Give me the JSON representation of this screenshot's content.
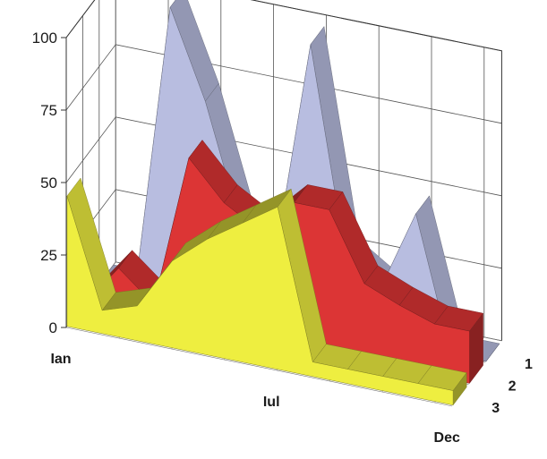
{
  "chart_data": {
    "type": "area",
    "subtype": "3d-area",
    "title": "",
    "xlabel": "",
    "ylabel": "",
    "ylim": [
      0,
      100
    ],
    "yticks": [
      0,
      25,
      50,
      75,
      100
    ],
    "category_labels": [
      {
        "index": 0,
        "label": "Ian"
      },
      {
        "index": 6,
        "label": "Iul"
      },
      {
        "index": 11,
        "label": "Dec"
      }
    ],
    "grid": true,
    "series": [
      {
        "label": "3",
        "color": "#eeee40",
        "values": [
          45,
          8,
          12,
          30,
          40,
          48,
          56,
          5,
          5,
          5,
          5,
          5
        ]
      },
      {
        "label": "2",
        "color": "#dc3535",
        "values": [
          0,
          15,
          5,
          58,
          45,
          38,
          50,
          50,
          27,
          22,
          18,
          18
        ]
      },
      {
        "label": "1",
        "color": "#b8bde0",
        "values": [
          0,
          0,
          100,
          70,
          30,
          22,
          97,
          26,
          18,
          46,
          0,
          0
        ]
      }
    ]
  }
}
